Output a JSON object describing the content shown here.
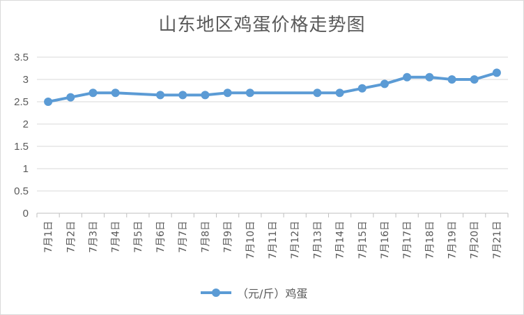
{
  "chart_data": {
    "type": "line",
    "title": "山东地区鸡蛋价格走势图",
    "xlabel": "",
    "ylabel": "",
    "categories": [
      "7月1日",
      "7月2日",
      "7月3日",
      "7月4日",
      "7月5日",
      "7月6日",
      "7月7日",
      "7月8日",
      "7月9日",
      "7月10日",
      "7月11日",
      "7月12日",
      "7月13日",
      "7月14日",
      "7月15日",
      "7月16日",
      "7月17日",
      "7月18日",
      "7月19日",
      "7月20日",
      "7月21日"
    ],
    "series": [
      {
        "name": "（元/斤）鸡蛋",
        "values": [
          2.5,
          2.6,
          2.7,
          2.7,
          null,
          2.65,
          2.65,
          2.65,
          2.7,
          2.7,
          null,
          null,
          2.7,
          2.7,
          2.8,
          2.9,
          3.05,
          3.05,
          3.0,
          3.0,
          3.15
        ],
        "color": "#5b9bd5"
      }
    ],
    "ylim": [
      0,
      3.5
    ],
    "yticks": [
      "0",
      "0.5",
      "1",
      "1.5",
      "2",
      "2.5",
      "3",
      "3.5"
    ],
    "grid": "horizontal",
    "legend_position": "bottom"
  }
}
